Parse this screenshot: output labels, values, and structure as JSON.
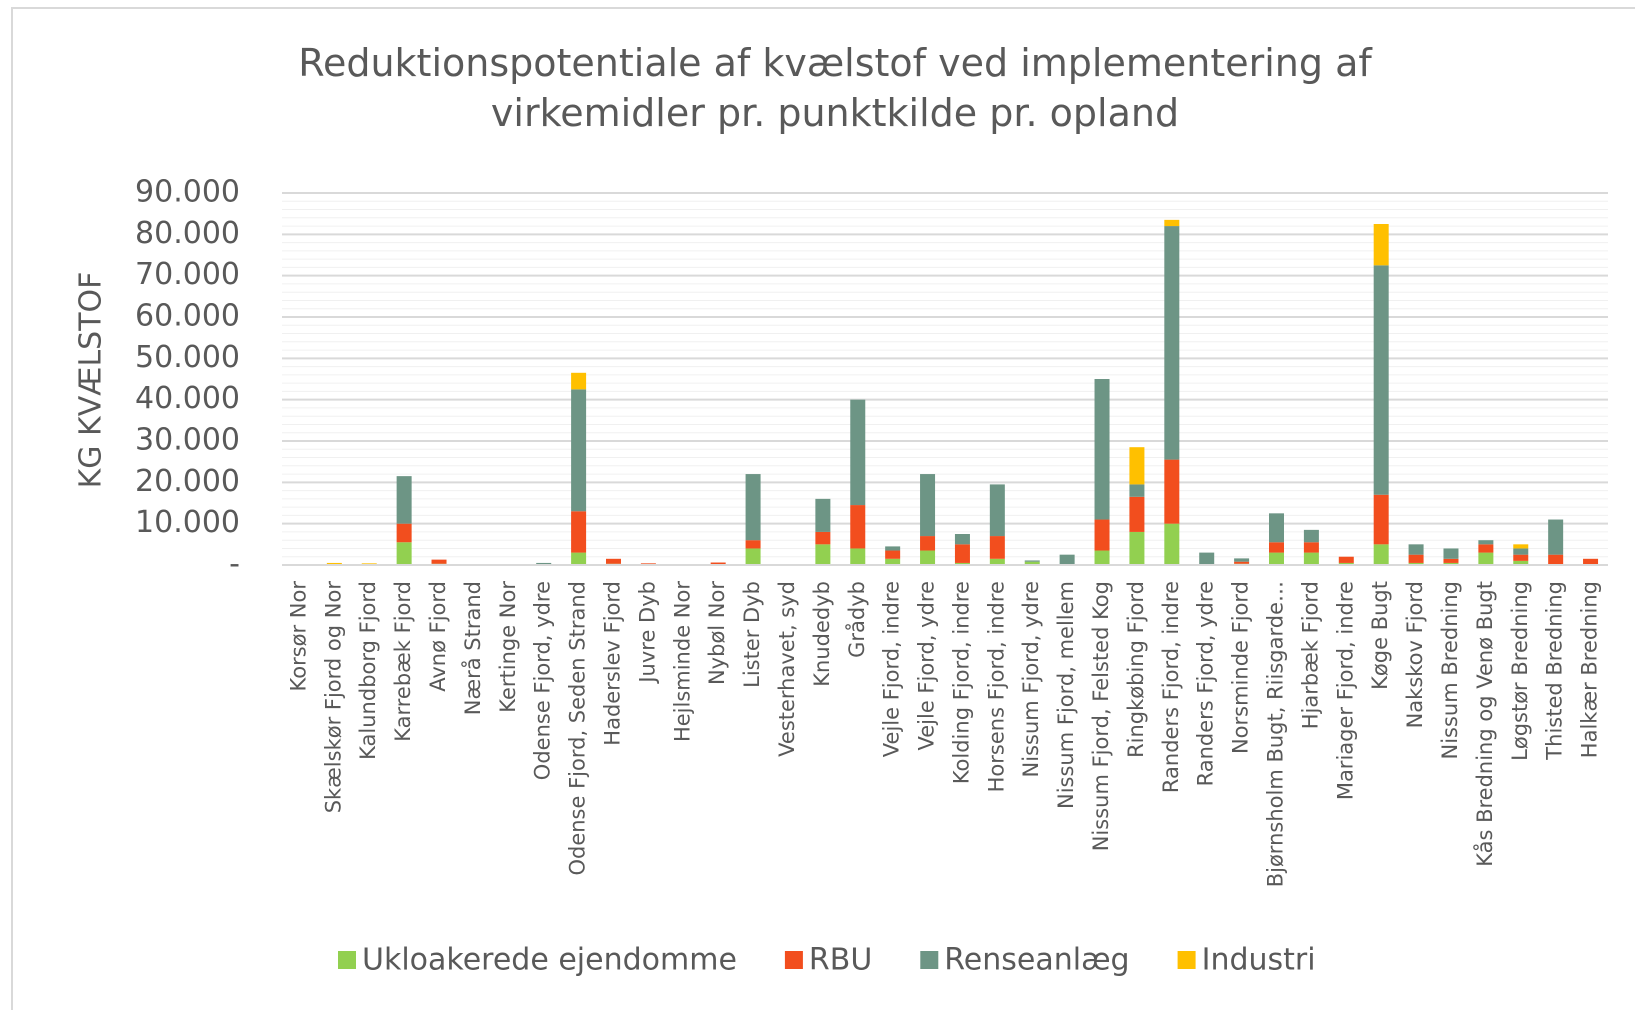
{
  "chart_data": {
    "type": "stacked_bar",
    "title": "Reduktionspotentiale af kvælstof ved implementering af virkemidler pr. punktkilde pr. opland",
    "y_label": "KG KVÆLSTOF",
    "categories": [
      "Korsør Nor",
      "Skælskør Fjord og Nor",
      "Kalundborg Fjord",
      "Karrebæk Fjord",
      "Avnø Fjord",
      "Nærå Strand",
      "Kertinge Nor",
      "Odense Fjord, ydre",
      "Odense Fjord, Seden Strand",
      "Haderslev Fjord",
      "Juvre Dyb",
      "Hejlsminde Nor",
      "Nybøl Nor",
      "Lister Dyb",
      "Vesterhavet, syd",
      "Knudedyb",
      "Grådyb",
      "Vejle Fjord, indre",
      "Vejle Fjord, ydre",
      "Kolding Fjord, indre",
      "Horsens Fjord, indre",
      "Nissum Fjord, ydre",
      "Nissum Fjord, mellem",
      "Nissum Fjord, Felsted Kog",
      "Ringkøbing Fjord",
      "Randers Fjord, indre",
      "Randers Fjord, ydre",
      "Norsminde Fjord",
      "Bjørnsholm Bugt, Riisgarde…",
      "Hjarbæk Fjord",
      "Mariager Fjord, indre",
      "Køge Bugt",
      "Nakskov Fjord",
      "Nissum Bredning",
      "Kås Bredning og Venø Bugt",
      "Løgstør Bredning",
      "Thisted Bredning",
      "Halkær Bredning"
    ],
    "series": [
      {
        "name": "Ukloakerede ejendomme",
        "color": "#92d050",
        "values": [
          0,
          0,
          0,
          5500,
          300,
          0,
          0,
          0,
          3000,
          300,
          0,
          0,
          0,
          4000,
          0,
          5000,
          4000,
          1500,
          3500,
          500,
          1500,
          800,
          0,
          3500,
          8000,
          10000,
          0,
          300,
          3000,
          3000,
          500,
          5000,
          500,
          500,
          3000,
          1000,
          0,
          0
        ]
      },
      {
        "name": "RBU",
        "color": "#f24e1e",
        "values": [
          0,
          0,
          0,
          4500,
          1000,
          0,
          0,
          0,
          10000,
          1200,
          400,
          0,
          600,
          2000,
          0,
          3000,
          10500,
          2000,
          3500,
          4500,
          5500,
          0,
          0,
          7500,
          8500,
          15500,
          0,
          500,
          2500,
          2500,
          1500,
          12000,
          2000,
          1000,
          2000,
          1500,
          2500,
          1500
        ]
      },
      {
        "name": "Renseanlæg",
        "color": "#6d9585",
        "values": [
          0,
          0,
          0,
          11500,
          0,
          0,
          0,
          500,
          29500,
          0,
          0,
          0,
          0,
          16000,
          0,
          8000,
          25500,
          1000,
          15000,
          2500,
          12500,
          300,
          2500,
          34000,
          3000,
          56500,
          3000,
          800,
          7000,
          3000,
          0,
          55500,
          2500,
          2500,
          1000,
          1500,
          8500,
          0
        ]
      },
      {
        "name": "Industri",
        "color": "#ffc000",
        "values": [
          0,
          500,
          400,
          0,
          0,
          0,
          0,
          0,
          4000,
          0,
          0,
          0,
          0,
          0,
          0,
          0,
          0,
          0,
          0,
          0,
          0,
          0,
          0,
          0,
          9000,
          1500,
          0,
          0,
          0,
          0,
          0,
          10000,
          0,
          0,
          0,
          1000,
          0,
          0
        ]
      }
    ],
    "ylim": [
      0,
      90000
    ],
    "yticks": [
      {
        "value": 0,
        "label": "-"
      },
      {
        "value": 10000,
        "label": "10.000"
      },
      {
        "value": 20000,
        "label": "20.000"
      },
      {
        "value": 30000,
        "label": "30.000"
      },
      {
        "value": 40000,
        "label": "40.000"
      },
      {
        "value": 50000,
        "label": "50.000"
      },
      {
        "value": 60000,
        "label": "60.000"
      },
      {
        "value": 70000,
        "label": "70.000"
      },
      {
        "value": 80000,
        "label": "80.000"
      },
      {
        "value": 90000,
        "label": "90.000"
      }
    ],
    "grid": true,
    "legend": "bottom"
  }
}
